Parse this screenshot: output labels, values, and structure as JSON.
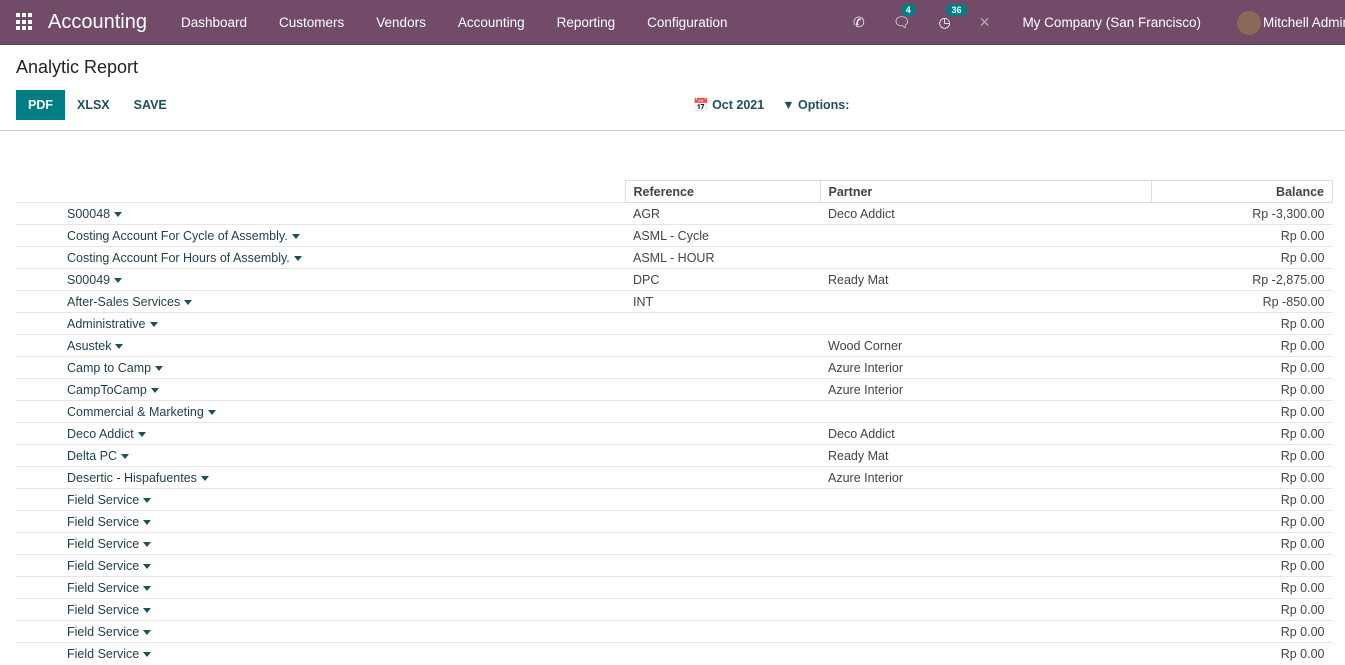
{
  "nav": {
    "brand": "Accounting",
    "menu": [
      "Dashboard",
      "Customers",
      "Vendors",
      "Accounting",
      "Reporting",
      "Configuration"
    ],
    "messages_count": "4",
    "activities_count": "36",
    "company": "My Company (San Francisco)",
    "user": "Mitchell Admin"
  },
  "page": {
    "title": "Analytic Report",
    "buttons": [
      "PDF",
      "XLSX",
      "SAVE"
    ],
    "date_filter": "Oct 2021",
    "options_label": "Options:"
  },
  "colors": {
    "nav": "#714b67",
    "primary": "#017e84"
  },
  "table": {
    "headers": [
      "",
      "Reference",
      "Partner",
      "Balance"
    ],
    "rows": [
      [
        "S00048",
        "AGR",
        "Deco Addict",
        "Rp -3,300.00"
      ],
      [
        "Costing Account For Cycle of Assembly.",
        "ASML - Cycle",
        "",
        "Rp 0.00"
      ],
      [
        "Costing Account For Hours of Assembly.",
        "ASML - HOUR",
        "",
        "Rp 0.00"
      ],
      [
        "S00049",
        "DPC",
        "Ready Mat",
        "Rp -2,875.00"
      ],
      [
        "After-Sales Services",
        "INT",
        "",
        "Rp -850.00"
      ],
      [
        "Administrative",
        "",
        "",
        "Rp 0.00"
      ],
      [
        "Asustek",
        "",
        "Wood Corner",
        "Rp 0.00"
      ],
      [
        "Camp to Camp",
        "",
        "Azure Interior",
        "Rp 0.00"
      ],
      [
        "CampToCamp",
        "",
        "Azure Interior",
        "Rp 0.00"
      ],
      [
        "Commercial & Marketing",
        "",
        "",
        "Rp 0.00"
      ],
      [
        "Deco Addict",
        "",
        "Deco Addict",
        "Rp 0.00"
      ],
      [
        "Delta PC",
        "",
        "Ready Mat",
        "Rp 0.00"
      ],
      [
        "Desertic - Hispafuentes",
        "",
        "Azure Interior",
        "Rp 0.00"
      ],
      [
        "Field Service",
        "",
        "",
        "Rp 0.00"
      ],
      [
        "Field Service",
        "",
        "",
        "Rp 0.00"
      ],
      [
        "Field Service",
        "",
        "",
        "Rp 0.00"
      ],
      [
        "Field Service",
        "",
        "",
        "Rp 0.00"
      ],
      [
        "Field Service",
        "",
        "",
        "Rp 0.00"
      ],
      [
        "Field Service",
        "",
        "",
        "Rp 0.00"
      ],
      [
        "Field Service",
        "",
        "",
        "Rp 0.00"
      ],
      [
        "Field Service",
        "",
        "",
        "Rp 0.00"
      ]
    ]
  }
}
